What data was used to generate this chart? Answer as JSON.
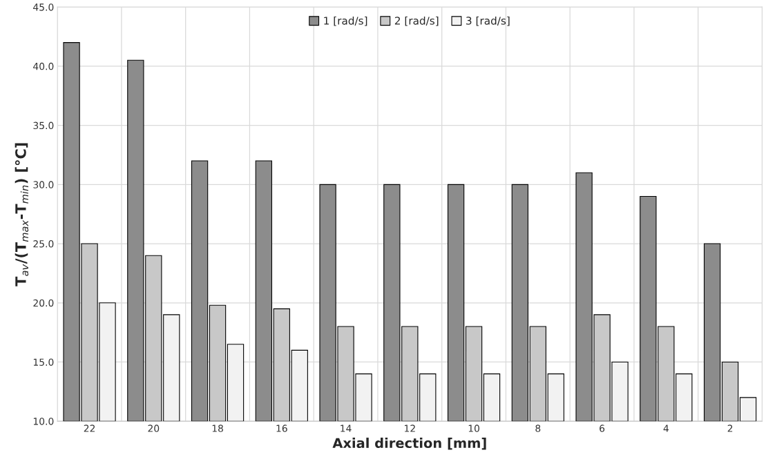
{
  "chart_data": {
    "type": "bar",
    "xlabel": "Axial direction [mm]",
    "ylabel": "T$_{av}$/(T$_{max}$-T$_{min}$) [°C]",
    "categories": [
      "22",
      "20",
      "18",
      "16",
      "14",
      "12",
      "10",
      "8",
      "6",
      "4",
      "2"
    ],
    "series": [
      {
        "name": "1 [rad/s]",
        "color": "#8c8c8c",
        "values": [
          42,
          40.5,
          32,
          32,
          30,
          30,
          30,
          30,
          31,
          29,
          25
        ]
      },
      {
        "name": "2 [rad/s]",
        "color": "#c8c8c8",
        "values": [
          25,
          24,
          19.8,
          19.5,
          18,
          18,
          18,
          18,
          19,
          18,
          15
        ]
      },
      {
        "name": "3 [rad/s]",
        "color": "#f2f2f2",
        "values": [
          20,
          19,
          16.5,
          16,
          14,
          14,
          14,
          14,
          15,
          14,
          12
        ]
      }
    ],
    "ylim": [
      10,
      45
    ],
    "yticks": [
      {
        "value": 10,
        "label": "10.0"
      },
      {
        "value": 15,
        "label": "15.0"
      },
      {
        "value": 20,
        "label": "20.0"
      },
      {
        "value": 25,
        "label": "25.0"
      },
      {
        "value": 30,
        "label": "30.0"
      },
      {
        "value": 35,
        "label": "35.0"
      },
      {
        "value": 40,
        "label": "40.0"
      },
      {
        "value": 45,
        "label": "45.0"
      }
    ],
    "grid": true,
    "legend": "top"
  }
}
